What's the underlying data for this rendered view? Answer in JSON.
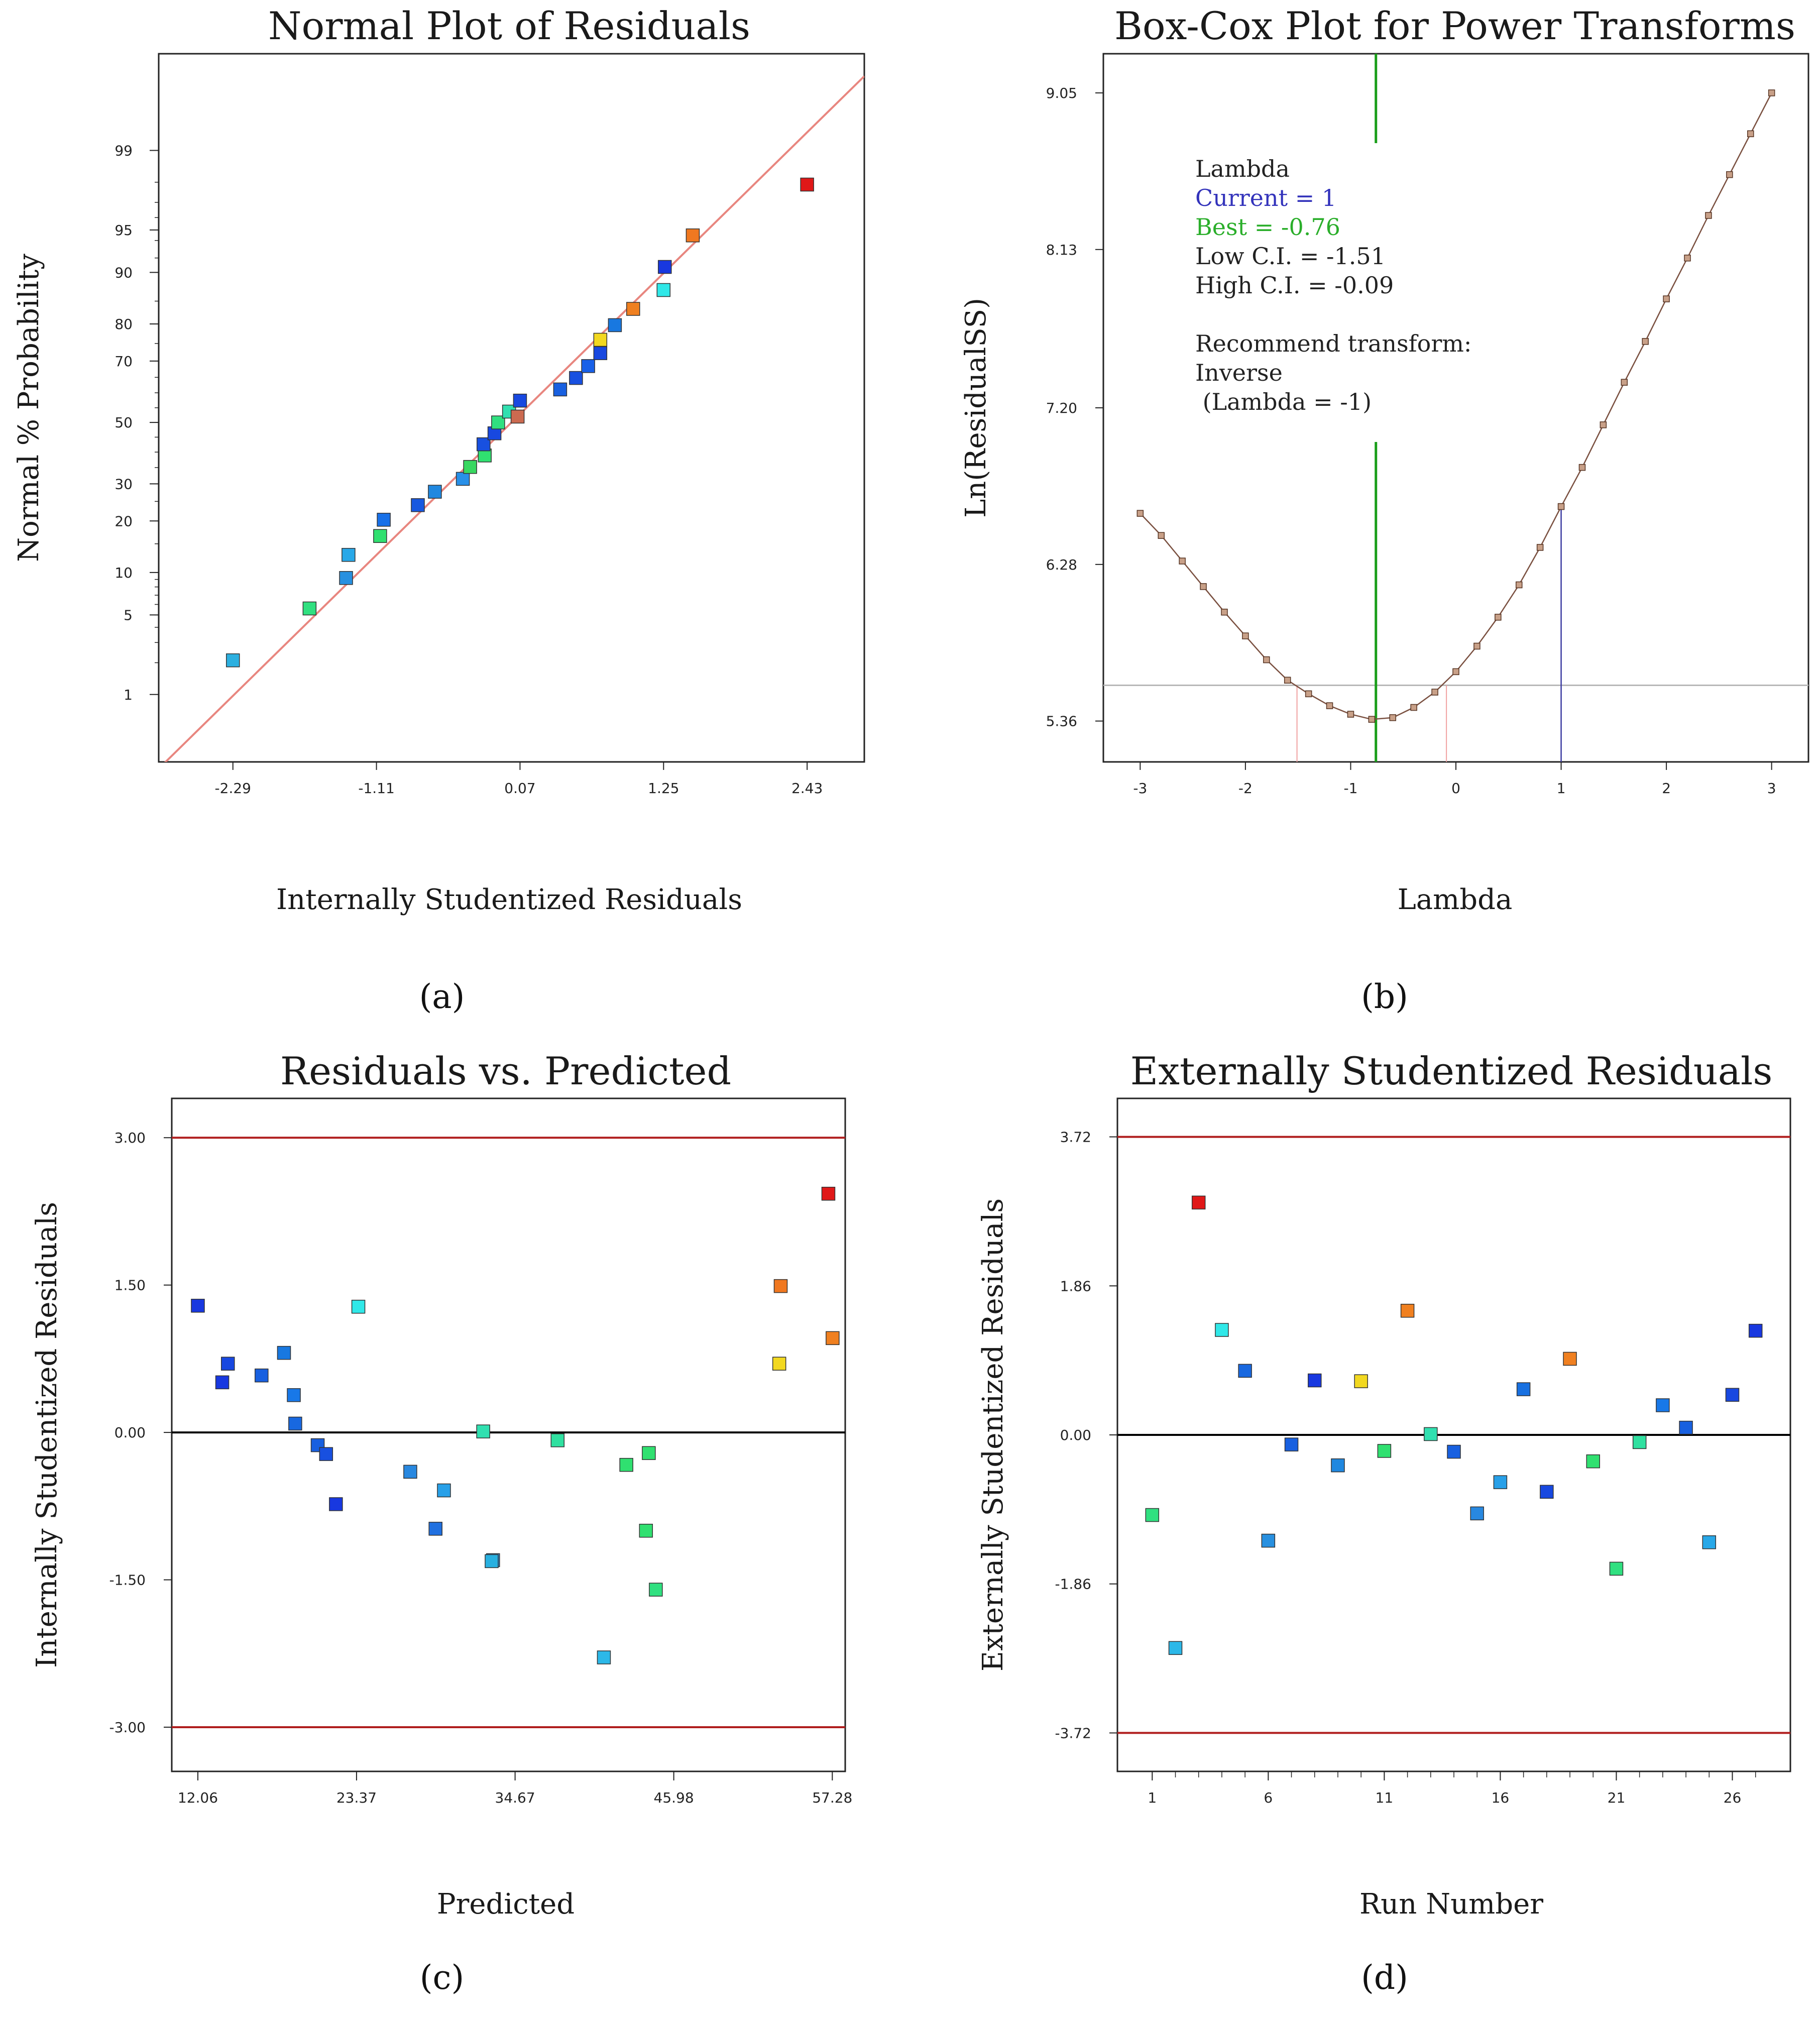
{
  "colors": {
    "frame": "#222222",
    "fit_line": "#e8867f",
    "limit_line": "#b01e1e",
    "zero_line": "#000000",
    "lambda_best": "#1a9e1a",
    "lambda_current": "#3a3aa0",
    "ci_line": "#f0a0a0",
    "min_line": "#b8b8b8",
    "curve": "#7a5040",
    "current_text": "#3333bb",
    "best_text": "#2aae2a",
    "text": "#222222"
  },
  "chart_data": [
    {
      "id": "a",
      "panel_label": "(a)",
      "type": "scatter",
      "title": "Normal Plot of Residuals",
      "xlabel": "Internally Studentized Residuals",
      "ylabel": "Normal % Probability",
      "xlim": [
        -2.9,
        2.9
      ],
      "ylim_z": [
        -2.9,
        3.15
      ],
      "x_ticks": [
        "-2.29",
        "-1.11",
        "0.07",
        "1.25",
        "2.43"
      ],
      "y_ticks": [
        "1",
        "5",
        "10",
        "20",
        "30",
        "50",
        "70",
        "80",
        "90",
        "95",
        "99"
      ],
      "fit_line": {
        "intercept": 0.0,
        "slope": 1.02
      },
      "points": [
        {
          "x": -2.29,
          "p": 2.1,
          "c": "#2cb0e0"
        },
        {
          "x": -1.66,
          "p": 5.6,
          "c": "#30e080"
        },
        {
          "x": -1.36,
          "p": 9.2,
          "c": "#2890e0"
        },
        {
          "x": -1.34,
          "p": 12.9,
          "c": "#28a8e8"
        },
        {
          "x": -1.08,
          "p": 16.6,
          "c": "#30e070"
        },
        {
          "x": -1.05,
          "p": 20.3,
          "c": "#1870e8"
        },
        {
          "x": -0.77,
          "p": 24.0,
          "c": "#1858e0"
        },
        {
          "x": -0.63,
          "p": 27.7,
          "c": "#2088e0"
        },
        {
          "x": -0.4,
          "p": 31.5,
          "c": "#2890e8"
        },
        {
          "x": -0.34,
          "p": 35.2,
          "c": "#38d860"
        },
        {
          "x": -0.22,
          "p": 38.9,
          "c": "#30e070"
        },
        {
          "x": -0.23,
          "p": 42.6,
          "c": "#1850e0"
        },
        {
          "x": -0.14,
          "p": 46.3,
          "c": "#1848e0"
        },
        {
          "x": -0.11,
          "p": 50.0,
          "c": "#30e080"
        },
        {
          "x": -0.02,
          "p": 53.7,
          "c": "#30e0b0"
        },
        {
          "x": 0.05,
          "p": 52.0,
          "c": "#cc6a50"
        },
        {
          "x": 0.07,
          "p": 57.4,
          "c": "#1848e0"
        },
        {
          "x": 0.4,
          "p": 61.1,
          "c": "#1860e0"
        },
        {
          "x": 0.53,
          "p": 64.8,
          "c": "#1850e0"
        },
        {
          "x": 0.63,
          "p": 68.5,
          "c": "#1860e8"
        },
        {
          "x": 0.73,
          "p": 72.3,
          "c": "#1848e0"
        },
        {
          "x": 0.73,
          "p": 76.0,
          "c": "#f2d820"
        },
        {
          "x": 0.85,
          "p": 79.7,
          "c": "#1878e0"
        },
        {
          "x": 1.0,
          "p": 83.4,
          "c": "#f08020"
        },
        {
          "x": 1.25,
          "p": 87.1,
          "c": "#30e8e8"
        },
        {
          "x": 1.26,
          "p": 90.8,
          "c": "#1838e0"
        },
        {
          "x": 1.49,
          "p": 94.5,
          "c": "#f07820"
        },
        {
          "x": 2.43,
          "p": 97.9,
          "c": "#e01818"
        }
      ]
    },
    {
      "id": "b",
      "panel_label": "(b)",
      "type": "line",
      "title": "Box-Cox Plot for Power Transforms",
      "xlabel": "Lambda",
      "ylabel": "Ln(ResidualSS)",
      "xlim": [
        -3.35,
        3.35
      ],
      "ylim": [
        5.12,
        9.28
      ],
      "x_ticks": [
        "-3",
        "-2",
        "-1",
        "0",
        "1",
        "2",
        "3"
      ],
      "y_ticks": [
        "5.36",
        "6.28",
        "7.20",
        "8.13",
        "9.05"
      ],
      "lambda_current": 1,
      "lambda_best": -0.76,
      "ci_low": -1.51,
      "ci_high": -0.09,
      "ci_threshold": 5.57,
      "curve": [
        [
          -3.0,
          6.58
        ],
        [
          -2.8,
          6.45
        ],
        [
          -2.6,
          6.3
        ],
        [
          -2.4,
          6.15
        ],
        [
          -2.2,
          6.0
        ],
        [
          -2.0,
          5.86
        ],
        [
          -1.8,
          5.72
        ],
        [
          -1.6,
          5.6
        ],
        [
          -1.4,
          5.52
        ],
        [
          -1.2,
          5.45
        ],
        [
          -1.0,
          5.4
        ],
        [
          -0.8,
          5.37
        ],
        [
          -0.6,
          5.38
        ],
        [
          -0.4,
          5.44
        ],
        [
          -0.2,
          5.53
        ],
        [
          0.0,
          5.65
        ],
        [
          0.2,
          5.8
        ],
        [
          0.4,
          5.97
        ],
        [
          0.6,
          6.16
        ],
        [
          0.8,
          6.38
        ],
        [
          1.0,
          6.62
        ],
        [
          1.2,
          6.85
        ],
        [
          1.4,
          7.1
        ],
        [
          1.6,
          7.35
        ],
        [
          1.8,
          7.59
        ],
        [
          2.0,
          7.84
        ],
        [
          2.2,
          8.08
        ],
        [
          2.4,
          8.33
        ],
        [
          2.6,
          8.57
        ],
        [
          2.8,
          8.81
        ],
        [
          3.0,
          9.05
        ]
      ],
      "annotation": {
        "heading": "Lambda",
        "current": "Current = 1",
        "best": "Best = -0.76",
        "low_ci": "Low C.I. = -1.51",
        "high_ci": "High C.I. = -0.09",
        "recommend": "Recommend transform:",
        "transform": "Inverse",
        "transform_lambda": " (Lambda = -1)"
      }
    },
    {
      "id": "c",
      "panel_label": "(c)",
      "type": "scatter",
      "title": "Residuals vs. Predicted",
      "xlabel": "Predicted",
      "ylabel": "Internally Studentized Residuals",
      "xlim": [
        10.2,
        58.2
      ],
      "ylim": [
        -3.45,
        3.4
      ],
      "x_ticks": [
        "12.06",
        "23.37",
        "34.67",
        "45.98",
        "57.28"
      ],
      "y_ticks": [
        "-3.00",
        "-1.50",
        "0.00",
        "1.50",
        "3.00"
      ],
      "limits": [
        3.0,
        -3.0
      ],
      "points": [
        {
          "x": 12.06,
          "y": 1.29,
          "c": "#1838e0"
        },
        {
          "x": 13.8,
          "y": 0.51,
          "c": "#1838e0"
        },
        {
          "x": 14.2,
          "y": 0.7,
          "c": "#1848e0"
        },
        {
          "x": 16.6,
          "y": 0.58,
          "c": "#1860e0"
        },
        {
          "x": 18.2,
          "y": 0.81,
          "c": "#1878e0"
        },
        {
          "x": 18.9,
          "y": 0.38,
          "c": "#1878e8"
        },
        {
          "x": 19.0,
          "y": 0.09,
          "c": "#1868e0"
        },
        {
          "x": 20.6,
          "y": -0.13,
          "c": "#1860e0"
        },
        {
          "x": 21.2,
          "y": -0.22,
          "c": "#1850e0"
        },
        {
          "x": 21.9,
          "y": -0.73,
          "c": "#1838e0"
        },
        {
          "x": 23.5,
          "y": 1.28,
          "c": "#30e8e8"
        },
        {
          "x": 27.2,
          "y": -0.4,
          "c": "#2888e0"
        },
        {
          "x": 29.0,
          "y": -0.98,
          "c": "#2070e0"
        },
        {
          "x": 29.6,
          "y": -0.59,
          "c": "#28a0e8"
        },
        {
          "x": 32.4,
          "y": 0.01,
          "c": "#30e0b0"
        },
        {
          "x": 33.1,
          "y": -1.3,
          "c": "#2890e0"
        },
        {
          "x": 33.0,
          "y": -1.31,
          "c": "#28b0e0"
        },
        {
          "x": 37.7,
          "y": -0.08,
          "c": "#30e0a0"
        },
        {
          "x": 41.0,
          "y": -2.29,
          "c": "#2cb8e8"
        },
        {
          "x": 42.6,
          "y": -0.33,
          "c": "#30e070"
        },
        {
          "x": 44.0,
          "y": -1.0,
          "c": "#30e070"
        },
        {
          "x": 44.2,
          "y": -0.21,
          "c": "#30e070"
        },
        {
          "x": 44.7,
          "y": -1.6,
          "c": "#30e080"
        },
        {
          "x": 53.5,
          "y": 0.7,
          "c": "#f2d820"
        },
        {
          "x": 53.6,
          "y": 1.49,
          "c": "#f07820"
        },
        {
          "x": 57.0,
          "y": 2.43,
          "c": "#e01818"
        },
        {
          "x": 57.3,
          "y": 0.96,
          "c": "#f08020"
        }
      ]
    },
    {
      "id": "d",
      "panel_label": "(d)",
      "type": "scatter",
      "title": "Externally Studentized Residuals",
      "xlabel": "Run Number",
      "ylabel": "Externally Studentized Residuals",
      "xlim": [
        -0.5,
        28.5
      ],
      "ylim": [
        -4.2,
        4.2
      ],
      "x_ticks": [
        "1",
        "6",
        "11",
        "16",
        "21",
        "26"
      ],
      "y_ticks": [
        "-3.72",
        "-1.86",
        "0.00",
        "1.86",
        "3.72"
      ],
      "limits": [
        3.72,
        -3.72
      ],
      "points": [
        {
          "x": 1,
          "y": -1.0,
          "c": "#30e080"
        },
        {
          "x": 2,
          "y": -2.66,
          "c": "#2cb8e8"
        },
        {
          "x": 3,
          "y": 2.9,
          "c": "#e01818"
        },
        {
          "x": 4,
          "y": 1.31,
          "c": "#30e8e8"
        },
        {
          "x": 5,
          "y": 0.8,
          "c": "#1868e0"
        },
        {
          "x": 6,
          "y": -1.32,
          "c": "#2890e0"
        },
        {
          "x": 7,
          "y": -0.12,
          "c": "#1860e0"
        },
        {
          "x": 8,
          "y": 0.68,
          "c": "#1838e0"
        },
        {
          "x": 9,
          "y": -0.38,
          "c": "#2088e0"
        },
        {
          "x": 10,
          "y": 0.67,
          "c": "#f2d820"
        },
        {
          "x": 11,
          "y": -0.2,
          "c": "#30e070"
        },
        {
          "x": 12,
          "y": 1.55,
          "c": "#f08020"
        },
        {
          "x": 13,
          "y": 0.01,
          "c": "#30e0b0"
        },
        {
          "x": 14,
          "y": -0.21,
          "c": "#1860e0"
        },
        {
          "x": 15,
          "y": -0.98,
          "c": "#2888e0"
        },
        {
          "x": 16,
          "y": -0.59,
          "c": "#28a0e8"
        },
        {
          "x": 17,
          "y": 0.57,
          "c": "#1870e0"
        },
        {
          "x": 18,
          "y": -0.71,
          "c": "#1848e0"
        },
        {
          "x": 19,
          "y": 0.95,
          "c": "#f08020"
        },
        {
          "x": 20,
          "y": -0.33,
          "c": "#30e070"
        },
        {
          "x": 21,
          "y": -1.67,
          "c": "#30e080"
        },
        {
          "x": 22,
          "y": -0.09,
          "c": "#30e0a0"
        },
        {
          "x": 23,
          "y": 0.37,
          "c": "#1878e8"
        },
        {
          "x": 24,
          "y": 0.09,
          "c": "#1860e0"
        },
        {
          "x": 25,
          "y": -1.34,
          "c": "#28a8e8"
        },
        {
          "x": 26,
          "y": 0.5,
          "c": "#1848e0"
        },
        {
          "x": 27,
          "y": 1.3,
          "c": "#1838e0"
        }
      ]
    }
  ]
}
